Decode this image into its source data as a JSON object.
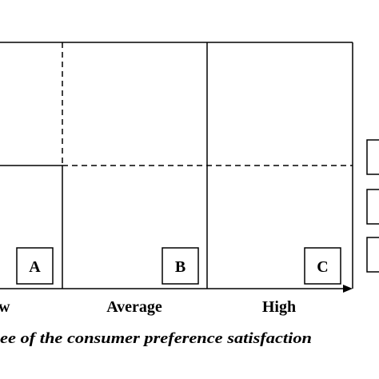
{
  "diagram": {
    "x_axis": {
      "labels": [
        "w",
        "Average",
        "High"
      ],
      "title": "ee of the consumer preference satisfaction"
    },
    "boxes": [
      "A",
      "B",
      "C"
    ],
    "side_boxes": [
      "",
      "",
      ""
    ]
  }
}
